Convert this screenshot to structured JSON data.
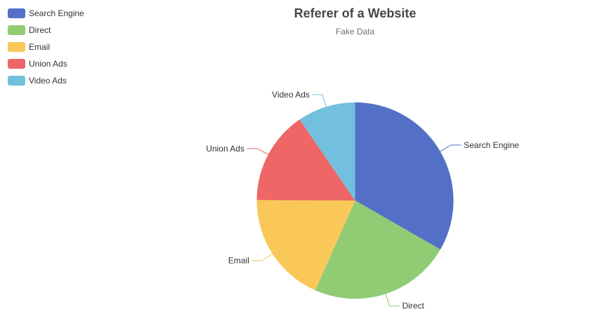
{
  "chart_data": {
    "type": "pie",
    "title": "Referer of a Website",
    "subtitle": "Fake Data",
    "categories": [
      "Search Engine",
      "Direct",
      "Email",
      "Union Ads",
      "Video Ads"
    ],
    "values": [
      1048,
      735,
      580,
      484,
      300
    ],
    "colors": [
      "#5470c6",
      "#91cc75",
      "#fac858",
      "#ee6666",
      "#73c0de"
    ],
    "legend_position": "top-left",
    "start_angle_deg": 90,
    "direction": "clockwise"
  }
}
